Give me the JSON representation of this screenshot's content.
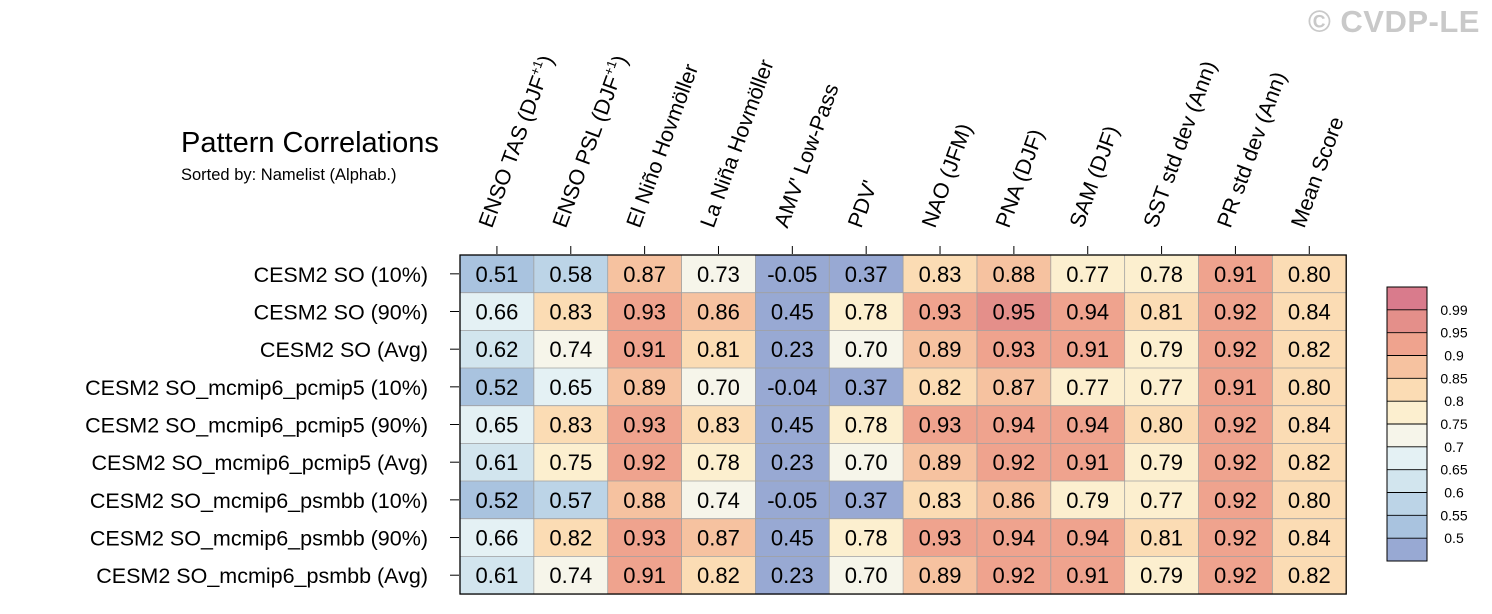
{
  "watermark": "© CVDP-LE",
  "title": "Pattern Correlations",
  "subtitle": "Sorted by: Namelist (Alphab.)",
  "chart_data": {
    "type": "heatmap",
    "columns": [
      "ENSO TAS (DJF+1)",
      "ENSO PSL (DJF+1)",
      "El Niño Hovmöller",
      "La Niña Hovmöller",
      "AMV' Low-Pass",
      "PDV'",
      "NAO (JFM)",
      "PNA (DJF)",
      "SAM (DJF)",
      "SST std dev (Ann)",
      "PR std dev (Ann)",
      "Mean Score"
    ],
    "rows": [
      "CESM2 SO (10%)",
      "CESM2 SO (90%)",
      "CESM2 SO (Avg)",
      "CESM2 SO_mcmip6_pcmip5 (10%)",
      "CESM2 SO_mcmip6_pcmip5 (90%)",
      "CESM2 SO_mcmip6_pcmip5 (Avg)",
      "CESM2 SO_mcmip6_psmbb (10%)",
      "CESM2 SO_mcmip6_psmbb (90%)",
      "CESM2 SO_mcmip6_psmbb (Avg)"
    ],
    "values": [
      [
        "0.51",
        "0.58",
        "0.87",
        "0.73",
        "-0.05",
        "0.37",
        "0.83",
        "0.88",
        "0.77",
        "0.78",
        "0.91",
        "0.80"
      ],
      [
        "0.66",
        "0.83",
        "0.93",
        "0.86",
        "0.45",
        "0.78",
        "0.93",
        "0.95",
        "0.94",
        "0.81",
        "0.92",
        "0.84"
      ],
      [
        "0.62",
        "0.74",
        "0.91",
        "0.81",
        "0.23",
        "0.70",
        "0.89",
        "0.93",
        "0.91",
        "0.79",
        "0.92",
        "0.82"
      ],
      [
        "0.52",
        "0.65",
        "0.89",
        "0.70",
        "-0.04",
        "0.37",
        "0.82",
        "0.87",
        "0.77",
        "0.77",
        "0.91",
        "0.80"
      ],
      [
        "0.65",
        "0.83",
        "0.93",
        "0.83",
        "0.45",
        "0.78",
        "0.93",
        "0.94",
        "0.94",
        "0.80",
        "0.92",
        "0.84"
      ],
      [
        "0.61",
        "0.75",
        "0.92",
        "0.78",
        "0.23",
        "0.70",
        "0.89",
        "0.92",
        "0.91",
        "0.79",
        "0.92",
        "0.82"
      ],
      [
        "0.52",
        "0.57",
        "0.88",
        "0.74",
        "-0.05",
        "0.37",
        "0.83",
        "0.86",
        "0.79",
        "0.77",
        "0.92",
        "0.80"
      ],
      [
        "0.66",
        "0.82",
        "0.93",
        "0.87",
        "0.45",
        "0.78",
        "0.93",
        "0.94",
        "0.94",
        "0.81",
        "0.92",
        "0.84"
      ],
      [
        "0.61",
        "0.74",
        "0.91",
        "0.82",
        "0.23",
        "0.70",
        "0.89",
        "0.92",
        "0.91",
        "0.79",
        "0.92",
        "0.82"
      ]
    ],
    "colorbar": {
      "labels": [
        "0.99",
        "0.95",
        "0.9",
        "0.85",
        "0.8",
        "0.75",
        "0.7",
        "0.65",
        "0.6",
        "0.55",
        "0.5"
      ],
      "thresholds": [
        0.5,
        0.55,
        0.6,
        0.65,
        0.7,
        0.75,
        0.8,
        0.85,
        0.9,
        0.95,
        0.99
      ],
      "colors": [
        "#98a9d3",
        "#a9c3df",
        "#bcd4e7",
        "#d2e5ee",
        "#e4f1f4",
        "#f6f5ea",
        "#fcefcf",
        "#fbdcb4",
        "#f6c2a0",
        "#efa38e",
        "#e48f8a",
        "#d97b8c"
      ]
    }
  }
}
